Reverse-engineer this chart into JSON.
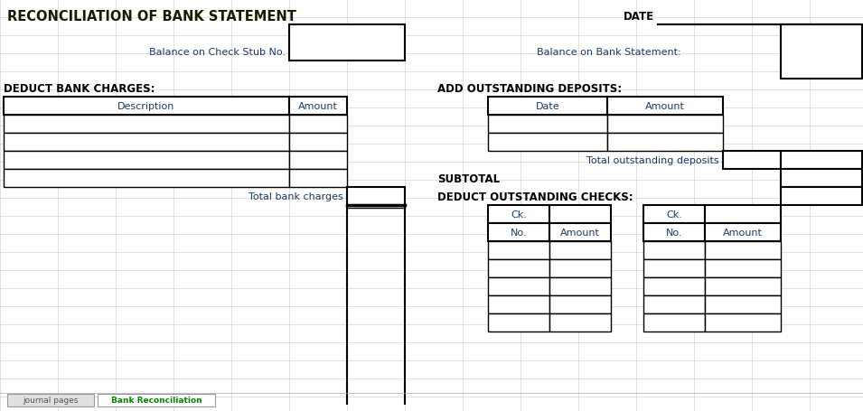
{
  "title": "RECONCILIATION OF BANK STATEMENT",
  "date_label": "DATE",
  "bg_color": "#ffffff",
  "grid_color": "#c8c8c8",
  "border_color": "#000000",
  "title_color": "#1a1a00",
  "label_color": "#1a3a6b",
  "section_color": "#000000",
  "title_fontsize": 10.5,
  "label_fontsize": 8.0,
  "section_fontsize": 8.5,
  "header_fontsize": 8.0,
  "left": {
    "balance_label": "Balance on Check Stub No.",
    "deduct_header": "DEDUCT BANK CHARGES:",
    "desc_col": "Description",
    "amount_col": "Amount",
    "total_label": "Total bank charges"
  },
  "right": {
    "balance_label": "Balance on Bank Statement:",
    "add_header": "ADD OUTSTANDING DEPOSITS:",
    "date_col": "Date",
    "amount_col": "Amount",
    "total_label": "Total outstanding deposits",
    "subtotal_label": "SUBTOTAL",
    "deduct_header": "DEDUCT OUTSTANDING CHECKS:",
    "ck": "Ck.",
    "no": "No.",
    "amount": "Amount"
  },
  "tabs": {
    "tab1_label": "journal pages",
    "tab2_label": "Bank Reconciliation"
  }
}
